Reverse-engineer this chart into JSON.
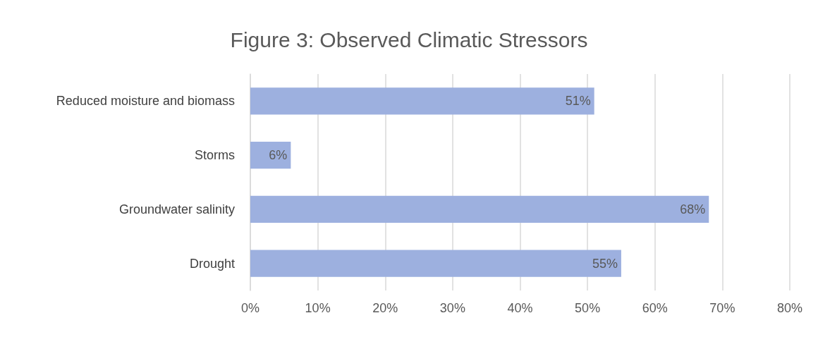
{
  "chart_data": {
    "type": "bar",
    "orientation": "horizontal",
    "title": "Figure 3: Observed Climatic Stressors",
    "categories": [
      "Reduced moisture and biomass",
      "Storms",
      "Groundwater salinity",
      "Drought"
    ],
    "values": [
      51,
      6,
      68,
      55
    ],
    "color": "#9db0df",
    "value_labels": [
      "51%",
      "6%",
      "68%",
      "55%"
    ],
    "xlim": [
      0,
      80
    ],
    "xticks": [
      {
        "value": 0,
        "label": "0%"
      },
      {
        "value": 10,
        "label": "10%"
      },
      {
        "value": 20,
        "label": "20%"
      },
      {
        "value": 30,
        "label": "30%"
      },
      {
        "value": 40,
        "label": "40%"
      },
      {
        "value": 50,
        "label": "50%"
      },
      {
        "value": 60,
        "label": "60%"
      },
      {
        "value": 70,
        "label": "70%"
      },
      {
        "value": 80,
        "label": "80%"
      }
    ],
    "grid": "x"
  }
}
